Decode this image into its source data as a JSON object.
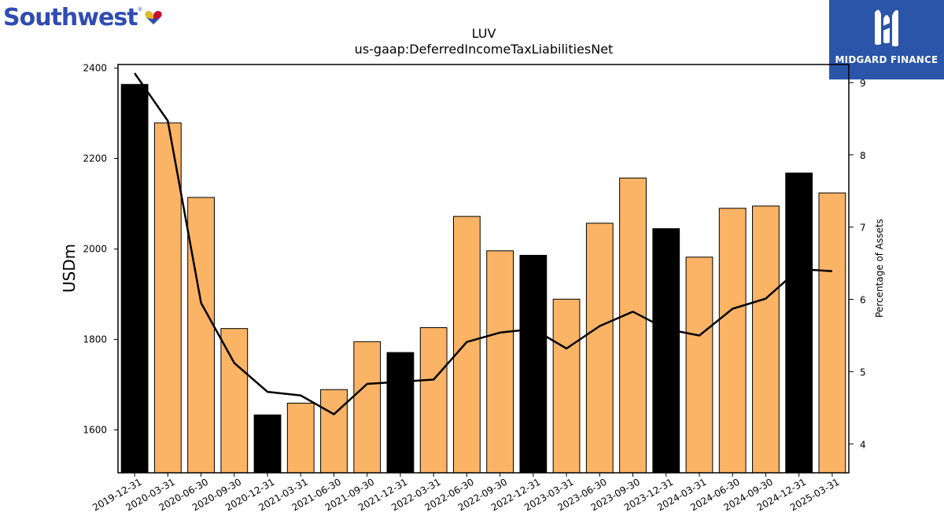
{
  "brand": {
    "company_logo_text": "Southwest",
    "company_logo_mark": "®",
    "company_heart_colors": [
      "#E4B82D",
      "#C8102E",
      "#304CB2"
    ],
    "publisher_name": "MIDGARD FINANCE",
    "publisher_bg": "#2b55a8"
  },
  "chart_data": {
    "type": "bar",
    "title": "LUV",
    "subtitle": "us-gaap:DeferredIncomeTaxLiabilitiesNet",
    "ylabel": "USDm",
    "y2label": "Percentage of Assets",
    "ylim": [
      1505,
      2408
    ],
    "y2lim": [
      3.6,
      9.25
    ],
    "yticks": [
      1600,
      1800,
      2000,
      2200,
      2400
    ],
    "y2ticks": [
      4,
      5,
      6,
      7,
      8,
      9
    ],
    "categories": [
      "2019-12-31",
      "2020-03-31",
      "2020-06-30",
      "2020-09-30",
      "2020-12-31",
      "2021-03-31",
      "2021-06-30",
      "2021-09-30",
      "2021-12-31",
      "2022-03-31",
      "2022-06-30",
      "2022-09-30",
      "2022-12-31",
      "2023-03-31",
      "2023-06-30",
      "2023-09-30",
      "2023-12-31",
      "2024-03-31",
      "2024-06-30",
      "2024-09-30",
      "2024-12-31",
      "2025-03-31"
    ],
    "series": [
      {
        "kind": "bar",
        "values": [
          2364,
          2279,
          2114,
          1824,
          1633,
          1659,
          1689,
          1795,
          1771,
          1826,
          2072,
          1996,
          1986,
          1889,
          2057,
          2157,
          2045,
          1982,
          2090,
          2095,
          2168,
          2124
        ],
        "annual_color": "#000000",
        "quarter_color": "#FBB365",
        "annual_flags": [
          true,
          false,
          false,
          false,
          true,
          false,
          false,
          false,
          true,
          false,
          false,
          false,
          true,
          false,
          false,
          false,
          true,
          false,
          false,
          false,
          true,
          false
        ]
      },
      {
        "kind": "line",
        "axis": "right",
        "color": "#000000",
        "values": [
          9.13,
          8.47,
          5.95,
          5.12,
          4.72,
          4.67,
          4.41,
          4.83,
          4.86,
          4.89,
          5.41,
          5.54,
          5.59,
          5.32,
          5.63,
          5.83,
          5.59,
          5.5,
          5.87,
          6.01,
          6.42,
          6.39
        ]
      }
    ]
  }
}
